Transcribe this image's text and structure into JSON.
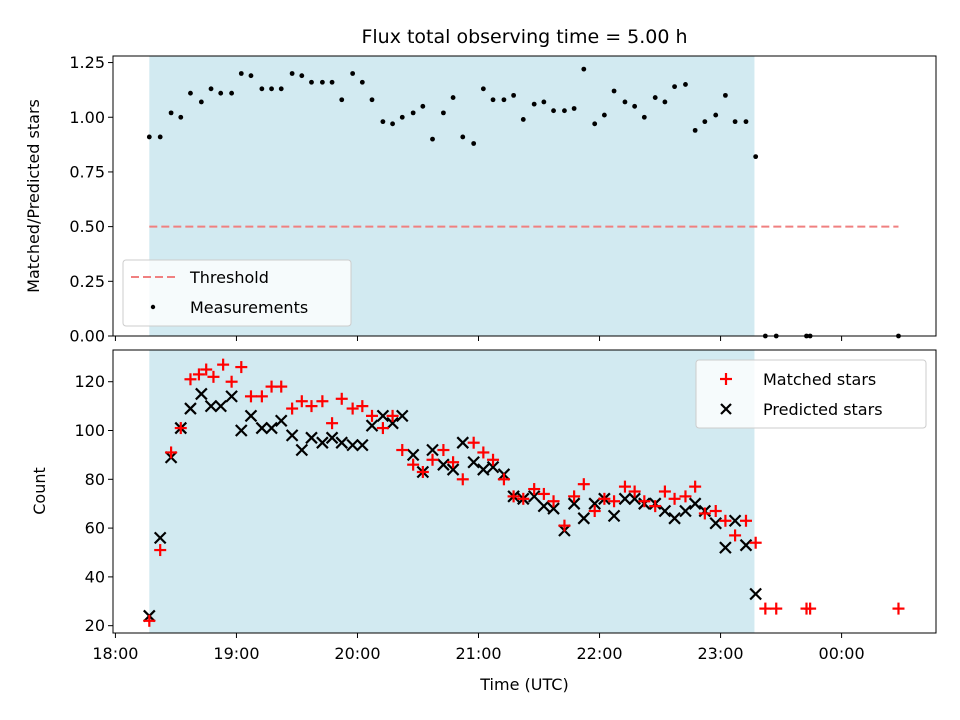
{
  "chart_data": [
    {
      "type": "scatter",
      "title": "Flux total observing time = 5.00 h",
      "ylabel": "Matched/Predicted stars",
      "ylim": [
        0,
        1.28
      ],
      "yticks": [
        0,
        0.25,
        0.5,
        0.75,
        1.0,
        1.25
      ],
      "ytick_labels": [
        "0.00",
        "0.25",
        "0.50",
        "0.75",
        "1.00",
        "1.25"
      ],
      "observing_window": {
        "start": 18.28,
        "end": 23.28
      },
      "threshold": {
        "label": "Threshold",
        "value": 0.5,
        "x_start": 18.28,
        "x_end": 24.47,
        "color": "#f08080"
      },
      "measurements": {
        "label": "Measurements",
        "color": "#000000",
        "x": [
          18.28,
          18.37,
          18.46,
          18.54,
          18.62,
          18.71,
          18.79,
          18.87,
          18.96,
          19.04,
          19.12,
          19.21,
          19.29,
          19.37,
          19.46,
          19.54,
          19.62,
          19.71,
          19.79,
          19.87,
          19.96,
          20.04,
          20.12,
          20.21,
          20.29,
          20.37,
          20.46,
          20.54,
          20.62,
          20.71,
          20.79,
          20.87,
          20.96,
          21.04,
          21.12,
          21.21,
          21.29,
          21.37,
          21.46,
          21.54,
          21.62,
          21.71,
          21.79,
          21.87,
          21.96,
          22.04,
          22.12,
          22.21,
          22.29,
          22.37,
          22.46,
          22.54,
          22.62,
          22.71,
          22.79,
          22.87,
          22.96,
          23.04,
          23.12,
          23.21,
          23.29,
          23.37,
          23.46,
          23.71,
          23.74,
          24.47
        ],
        "y": [
          0.91,
          0.91,
          1.02,
          1.0,
          1.11,
          1.07,
          1.13,
          1.11,
          1.11,
          1.2,
          1.19,
          1.13,
          1.13,
          1.13,
          1.2,
          1.19,
          1.16,
          1.16,
          1.16,
          1.08,
          1.2,
          1.16,
          1.08,
          0.98,
          0.97,
          1.0,
          1.02,
          1.05,
          0.9,
          1.02,
          1.09,
          0.91,
          0.88,
          1.13,
          1.08,
          1.08,
          1.1,
          0.99,
          1.06,
          1.07,
          1.03,
          1.03,
          1.04,
          1.22,
          0.97,
          1.01,
          1.12,
          1.07,
          1.05,
          1.0,
          1.09,
          1.07,
          1.14,
          1.15,
          0.94,
          0.98,
          1.01,
          1.1,
          0.98,
          0.98,
          0.82,
          0.0,
          0.0,
          0.0,
          0.0,
          0.0
        ]
      },
      "legend_loc": "lower-left"
    },
    {
      "type": "scatter",
      "xlabel": "Time (UTC)",
      "ylabel": "Count",
      "ylim": [
        17,
        133
      ],
      "yticks": [
        20,
        40,
        60,
        80,
        100,
        120
      ],
      "ytick_labels": [
        "20",
        "40",
        "60",
        "80",
        "100",
        "120"
      ],
      "xlim": [
        17.98,
        24.78
      ],
      "xticks": [
        18,
        19,
        20,
        21,
        22,
        23,
        24
      ],
      "xtick_labels": [
        "18:00",
        "19:00",
        "20:00",
        "21:00",
        "22:00",
        "23:00",
        "00:00"
      ],
      "observing_window": {
        "start": 18.28,
        "end": 23.28
      },
      "series": [
        {
          "name": "Matched stars",
          "marker": "plus",
          "color": "#ff0000",
          "x": [
            18.28,
            18.37,
            18.46,
            18.54,
            18.62,
            18.69,
            18.75,
            18.81,
            18.89,
            18.96,
            19.04,
            19.12,
            19.21,
            19.29,
            19.37,
            19.46,
            19.54,
            19.62,
            19.71,
            19.79,
            19.87,
            19.96,
            20.04,
            20.12,
            20.21,
            20.29,
            20.37,
            20.46,
            20.54,
            20.62,
            20.71,
            20.79,
            20.87,
            20.96,
            21.04,
            21.12,
            21.21,
            21.29,
            21.37,
            21.46,
            21.54,
            21.62,
            21.71,
            21.79,
            21.87,
            21.96,
            22.04,
            22.12,
            22.21,
            22.29,
            22.37,
            22.46,
            22.54,
            22.62,
            22.71,
            22.79,
            22.87,
            22.96,
            23.04,
            23.12,
            23.21,
            23.29,
            23.37,
            23.46,
            23.71,
            23.74,
            24.47
          ],
          "y": [
            22,
            51,
            91,
            101,
            121,
            123,
            125,
            122,
            127,
            120,
            126,
            114,
            114,
            118,
            118,
            109,
            112,
            110,
            112,
            103,
            113,
            109,
            110,
            106,
            101,
            106,
            92,
            86,
            83,
            88,
            92,
            87,
            80,
            95,
            91,
            88,
            80,
            73,
            72,
            76,
            74,
            71,
            61,
            73,
            78,
            67,
            72,
            71,
            77,
            75,
            71,
            69,
            75,
            72,
            73,
            77,
            66,
            67,
            63,
            57,
            63,
            54,
            27,
            27,
            27,
            27,
            27
          ]
        },
        {
          "name": "Predicted stars",
          "marker": "x",
          "color": "#000000",
          "x": [
            18.28,
            18.37,
            18.46,
            18.54,
            18.62,
            18.71,
            18.79,
            18.87,
            18.96,
            19.04,
            19.12,
            19.21,
            19.29,
            19.37,
            19.46,
            19.54,
            19.62,
            19.71,
            19.79,
            19.87,
            19.96,
            20.04,
            20.12,
            20.21,
            20.29,
            20.37,
            20.46,
            20.54,
            20.62,
            20.71,
            20.79,
            20.87,
            20.96,
            21.04,
            21.12,
            21.21,
            21.29,
            21.37,
            21.46,
            21.54,
            21.62,
            21.71,
            21.79,
            21.87,
            21.96,
            22.04,
            22.12,
            22.21,
            22.29,
            22.37,
            22.46,
            22.54,
            22.62,
            22.71,
            22.79,
            22.87,
            22.96,
            23.04,
            23.12,
            23.21,
            23.29
          ],
          "y": [
            24,
            56,
            89,
            101,
            109,
            115,
            110,
            110,
            114,
            100,
            106,
            101,
            101,
            104,
            98,
            92,
            97,
            95,
            97,
            95,
            94,
            94,
            102,
            106,
            103,
            106,
            90,
            83,
            92,
            86,
            84,
            95,
            87,
            84,
            85,
            82,
            73,
            72,
            73,
            69,
            68,
            59,
            70,
            64,
            70,
            72,
            65,
            72,
            72,
            70,
            70,
            67,
            64,
            67,
            70,
            67,
            62,
            52,
            63,
            53,
            33
          ]
        }
      ],
      "legend_loc": "upper-right"
    }
  ]
}
